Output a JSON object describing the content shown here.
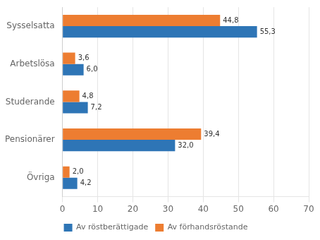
{
  "chart_data": {
    "type": "bar",
    "orientation": "horizontal",
    "categories": [
      "Sysselsatta",
      "Arbetslösa",
      "Studerande",
      "Pensionärer",
      "Övriga"
    ],
    "series": [
      {
        "name": "Av röstberättigade",
        "color": "#2E75B6",
        "values": [
          55.3,
          6.0,
          7.2,
          32.0,
          4.2
        ],
        "value_labels": [
          "55,3",
          "6,0",
          "7,2",
          "32,0",
          "4,2"
        ]
      },
      {
        "name": "Av förhandsröstande",
        "color": "#ED7D31",
        "values": [
          44.8,
          3.6,
          4.8,
          39.4,
          2.0
        ],
        "value_labels": [
          "44,8",
          "3,6",
          "4,8",
          "39,4",
          "2,0"
        ]
      }
    ],
    "xlim": [
      0,
      70
    ],
    "xticks": [
      0,
      10,
      20,
      30,
      40,
      50,
      60,
      70
    ],
    "grid": true,
    "legend": "bottom",
    "data_labels": true
  }
}
